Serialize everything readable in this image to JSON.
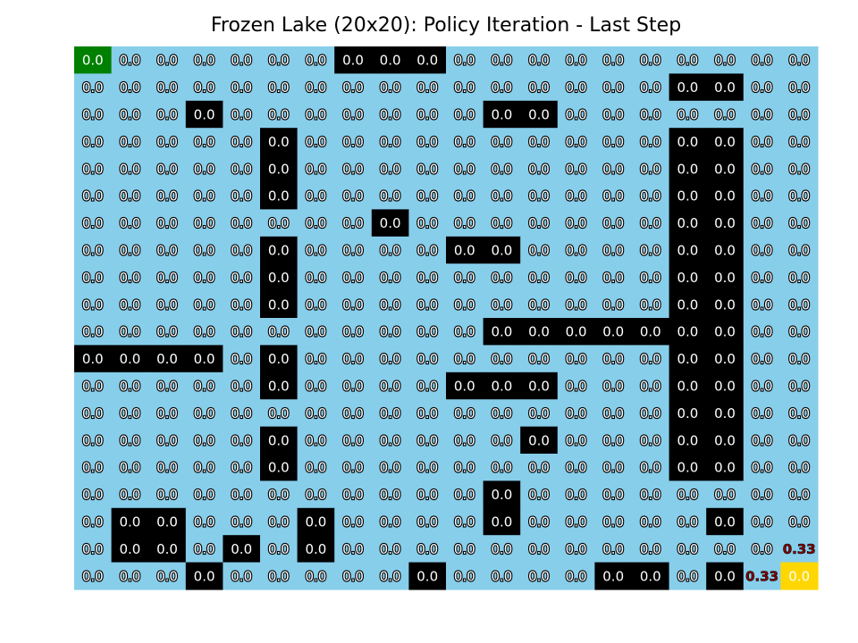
{
  "chart_data": {
    "type": "heatmap",
    "title": "Frozen Lake (20x20): Policy Iteration - Last Step",
    "rows": 20,
    "cols": 20,
    "start": [
      0,
      0
    ],
    "goal": [
      19,
      19
    ],
    "holes": [
      [
        0,
        7
      ],
      [
        0,
        8
      ],
      [
        0,
        9
      ],
      [
        1,
        16
      ],
      [
        1,
        17
      ],
      [
        2,
        3
      ],
      [
        2,
        11
      ],
      [
        2,
        12
      ],
      [
        3,
        5
      ],
      [
        3,
        16
      ],
      [
        3,
        17
      ],
      [
        4,
        5
      ],
      [
        4,
        16
      ],
      [
        4,
        17
      ],
      [
        5,
        5
      ],
      [
        5,
        16
      ],
      [
        5,
        17
      ],
      [
        6,
        8
      ],
      [
        6,
        16
      ],
      [
        6,
        17
      ],
      [
        7,
        5
      ],
      [
        7,
        10
      ],
      [
        7,
        11
      ],
      [
        7,
        16
      ],
      [
        7,
        17
      ],
      [
        8,
        5
      ],
      [
        8,
        16
      ],
      [
        8,
        17
      ],
      [
        9,
        5
      ],
      [
        9,
        16
      ],
      [
        9,
        17
      ],
      [
        10,
        11
      ],
      [
        10,
        12
      ],
      [
        10,
        13
      ],
      [
        10,
        14
      ],
      [
        10,
        15
      ],
      [
        10,
        16
      ],
      [
        10,
        17
      ],
      [
        11,
        0
      ],
      [
        11,
        1
      ],
      [
        11,
        2
      ],
      [
        11,
        3
      ],
      [
        11,
        5
      ],
      [
        11,
        16
      ],
      [
        11,
        17
      ],
      [
        12,
        5
      ],
      [
        12,
        10
      ],
      [
        12,
        11
      ],
      [
        12,
        12
      ],
      [
        12,
        16
      ],
      [
        12,
        17
      ],
      [
        13,
        16
      ],
      [
        13,
        17
      ],
      [
        14,
        5
      ],
      [
        14,
        12
      ],
      [
        14,
        16
      ],
      [
        14,
        17
      ],
      [
        15,
        5
      ],
      [
        15,
        16
      ],
      [
        15,
        17
      ],
      [
        16,
        11
      ],
      [
        17,
        1
      ],
      [
        17,
        2
      ],
      [
        17,
        6
      ],
      [
        17,
        11
      ],
      [
        17,
        17
      ],
      [
        18,
        1
      ],
      [
        18,
        2
      ],
      [
        18,
        4
      ],
      [
        18,
        6
      ],
      [
        19,
        3
      ],
      [
        19,
        9
      ],
      [
        19,
        14
      ],
      [
        19,
        15
      ],
      [
        19,
        17
      ]
    ],
    "default_value": "0.0",
    "value_overrides": [
      {
        "cell": [
          18,
          19
        ],
        "value": "0.33"
      },
      {
        "cell": [
          19,
          18
        ],
        "value": "0.33"
      }
    ],
    "colors": {
      "frozen": "#87ceeb",
      "hole": "#000000",
      "start": "#008000",
      "goal": "#ffd700",
      "value_text": "#ffffff",
      "value_outline": "#000000",
      "highlight_text": "#8b0000"
    }
  }
}
